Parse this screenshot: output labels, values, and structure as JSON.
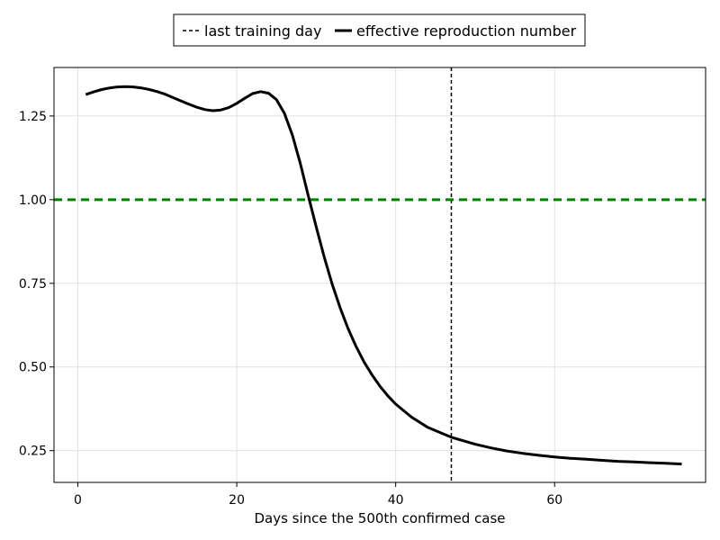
{
  "chart_data": {
    "type": "line",
    "title": "",
    "xlabel": "Days since the 500th confirmed case",
    "ylabel": "",
    "xlim": [
      -3,
      79
    ],
    "ylim": [
      0.155,
      1.395
    ],
    "xticks": [
      0,
      20,
      40,
      60
    ],
    "xtick_labels": [
      "0",
      "20",
      "40",
      "60"
    ],
    "yticks": [
      0.25,
      0.5,
      0.75,
      1.0,
      1.25
    ],
    "ytick_labels": [
      "0.25",
      "0.50",
      "0.75",
      "1.00",
      "1.25"
    ],
    "grid": true,
    "legend": {
      "placement": "top-center, outside plot",
      "entries": [
        "last training day",
        "effective reproduction number"
      ]
    },
    "series": [
      {
        "name": "effective reproduction number",
        "style": "solid",
        "color": "#000000",
        "x": [
          1,
          2,
          3,
          4,
          5,
          6,
          7,
          8,
          9,
          10,
          11,
          12,
          13,
          14,
          15,
          16,
          17,
          18,
          19,
          20,
          21,
          22,
          23,
          24,
          25,
          26,
          27,
          28,
          29,
          30,
          31,
          32,
          33,
          34,
          35,
          36,
          37,
          38,
          39,
          40,
          42,
          44,
          46,
          47,
          48,
          50,
          52,
          54,
          56,
          58,
          60,
          62,
          64,
          66,
          68,
          70,
          72,
          74,
          76
        ],
        "y": [
          1.314,
          1.322,
          1.329,
          1.334,
          1.337,
          1.338,
          1.337,
          1.334,
          1.329,
          1.323,
          1.315,
          1.305,
          1.295,
          1.285,
          1.276,
          1.269,
          1.266,
          1.268,
          1.275,
          1.288,
          1.303,
          1.317,
          1.323,
          1.318,
          1.299,
          1.258,
          1.193,
          1.108,
          1.012,
          0.918,
          0.829,
          0.748,
          0.677,
          0.615,
          0.562,
          0.516,
          0.477,
          0.443,
          0.414,
          0.389,
          0.35,
          0.32,
          0.3,
          0.29,
          0.283,
          0.269,
          0.258,
          0.249,
          0.242,
          0.236,
          0.231,
          0.227,
          0.224,
          0.221,
          0.218,
          0.216,
          0.214,
          0.212,
          0.21
        ]
      }
    ],
    "reference_lines": [
      {
        "name": "last training day",
        "orientation": "vertical",
        "value": 47,
        "style": "dashed",
        "color": "#000000"
      },
      {
        "orientation": "horizontal",
        "value": 1.0,
        "style": "dashed",
        "color": "#008000"
      }
    ]
  }
}
